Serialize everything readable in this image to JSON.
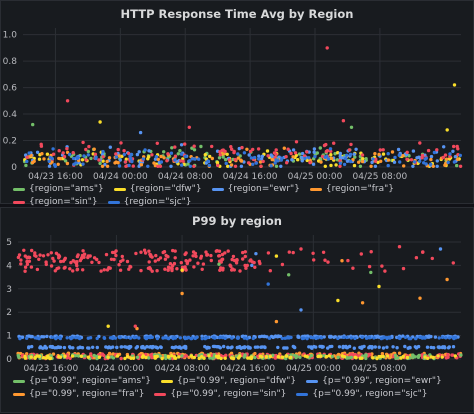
{
  "chart_data": [
    {
      "type": "scatter",
      "title": "HTTP Response Time Avg by Region",
      "xlabel": "",
      "ylabel": "",
      "ylim": [
        0,
        1.05
      ],
      "y_ticks": [
        "0",
        "0.2",
        "0.4",
        "0.6",
        "0.8",
        "1.0"
      ],
      "x_range_hours": [
        0,
        54
      ],
      "x_ticks": [
        {
          "hour": 4,
          "label": "04/23 16:00"
        },
        {
          "hour": 12,
          "label": "04/24 00:00"
        },
        {
          "hour": 20,
          "label": "04/24 08:00"
        },
        {
          "hour": 28,
          "label": "04/24 16:00"
        },
        {
          "hour": 36,
          "label": "04/25 00:00"
        },
        {
          "hour": 44,
          "label": "04/25 08:00"
        }
      ],
      "grid": true,
      "legend_position": "bottom",
      "series": [
        {
          "name": "{region=\"ams\"}",
          "color": "#73bf69",
          "base": 0.07,
          "spread": 0.09,
          "count": 90
        },
        {
          "name": "{region=\"dfw\"}",
          "color": "#fade2a",
          "base": 0.06,
          "spread": 0.08,
          "count": 90
        },
        {
          "name": "{region=\"ewr\"}",
          "color": "#5794f2",
          "base": 0.07,
          "spread": 0.1,
          "count": 110
        },
        {
          "name": "{region=\"fra\"}",
          "color": "#ff9830",
          "base": 0.06,
          "spread": 0.09,
          "count": 90
        },
        {
          "name": "{region=\"sin\"}",
          "color": "#f2495c",
          "base": 0.09,
          "spread": 0.12,
          "count": 120
        },
        {
          "name": "{region=\"sjc\"}",
          "color": "#3274d9",
          "base": 0.06,
          "spread": 0.08,
          "count": 90
        }
      ],
      "outliers": [
        {
          "series": 4,
          "hour": 37.5,
          "y": 0.9
        },
        {
          "series": 1,
          "hour": 53.2,
          "y": 0.62
        },
        {
          "series": 4,
          "hour": 5.5,
          "y": 0.5
        },
        {
          "series": 4,
          "hour": 39.5,
          "y": 0.35
        },
        {
          "series": 0,
          "hour": 1.2,
          "y": 0.32
        },
        {
          "series": 1,
          "hour": 9.5,
          "y": 0.34
        },
        {
          "series": 4,
          "hour": 20.5,
          "y": 0.3
        },
        {
          "series": 2,
          "hour": 14.5,
          "y": 0.26
        },
        {
          "series": 1,
          "hour": 52.3,
          "y": 0.28
        },
        {
          "series": 0,
          "hour": 40.5,
          "y": 0.3
        }
      ]
    },
    {
      "type": "scatter",
      "title": "P99 by region",
      "xlabel": "",
      "ylabel": "",
      "ylim": [
        0,
        5.3
      ],
      "y_ticks": [
        "0",
        "1",
        "2",
        "3",
        "4",
        "5"
      ],
      "x_range_hours": [
        0,
        54
      ],
      "x_ticks": [
        {
          "hour": 4,
          "label": "04/23 16:00"
        },
        {
          "hour": 12,
          "label": "04/24 00:00"
        },
        {
          "hour": 20,
          "label": "04/24 08:00"
        },
        {
          "hour": 28,
          "label": "04/24 16:00"
        },
        {
          "hour": 36,
          "label": "04/25 00:00"
        },
        {
          "hour": 44,
          "label": "04/25 08:00"
        }
      ],
      "grid": true,
      "legend_position": "bottom",
      "series": [
        {
          "name": "{p=\"0.99\", region=\"ams\"}",
          "color": "#73bf69"
        },
        {
          "name": "{p=\"0.99\", region=\"dfw\"}",
          "color": "#fade2a"
        },
        {
          "name": "{p=\"0.99\", region=\"ewr\"}",
          "color": "#5794f2"
        },
        {
          "name": "{p=\"0.99\", region=\"fra\"}",
          "color": "#ff9830"
        },
        {
          "name": "{p=\"0.99\", region=\"sin\"}",
          "color": "#f2495c"
        },
        {
          "name": "{p=\"0.99\", region=\"sjc\"}",
          "color": "#3274d9"
        }
      ],
      "bands": [
        {
          "series": 2,
          "y": 0.95,
          "jitter": 0.03,
          "hour_from": 0,
          "hour_to": 54,
          "count": 200
        },
        {
          "series": 5,
          "y": 0.9,
          "jitter": 0.03,
          "hour_from": 0,
          "hour_to": 54,
          "count": 140
        },
        {
          "series": 2,
          "y": 0.5,
          "jitter": 0.04,
          "hour_from": 0,
          "hour_to": 54,
          "count": 170
        },
        {
          "series": 3,
          "y": 0.15,
          "jitter": 0.1,
          "hour_from": 0,
          "hour_to": 54,
          "count": 200
        },
        {
          "series": 4,
          "y": 0.12,
          "jitter": 0.1,
          "hour_from": 0,
          "hour_to": 54,
          "count": 180
        },
        {
          "series": 0,
          "y": 0.1,
          "jitter": 0.08,
          "hour_from": 0,
          "hour_to": 54,
          "count": 120
        },
        {
          "series": 1,
          "y": 0.08,
          "jitter": 0.06,
          "hour_from": 0,
          "hour_to": 54,
          "count": 100
        },
        {
          "series": 4,
          "y": 4.2,
          "jitter": 0.45,
          "hour_from": 0,
          "hour_to": 30,
          "count": 200
        },
        {
          "series": 4,
          "y": 4.2,
          "jitter": 0.45,
          "hour_from": 30,
          "hour_to": 54,
          "count": 22
        }
      ],
      "outliers": [
        {
          "series": 4,
          "hour": 34.5,
          "y": 4.7
        },
        {
          "series": 4,
          "hour": 46.5,
          "y": 4.8
        },
        {
          "series": 4,
          "hour": 50.5,
          "y": 4.3
        },
        {
          "series": 3,
          "hour": 39.5,
          "y": 4.2
        },
        {
          "series": 3,
          "hour": 52.3,
          "y": 3.4
        },
        {
          "series": 3,
          "hour": 49.0,
          "y": 2.6
        },
        {
          "series": 3,
          "hour": 42.0,
          "y": 2.4
        },
        {
          "series": 0,
          "hour": 24.5,
          "y": 4.05
        },
        {
          "series": 0,
          "hour": 43.0,
          "y": 3.7
        },
        {
          "series": 0,
          "hour": 33.0,
          "y": 3.6
        },
        {
          "series": 1,
          "hour": 31.5,
          "y": 4.4
        },
        {
          "series": 1,
          "hour": 20.0,
          "y": 3.8
        },
        {
          "series": 1,
          "hour": 44.0,
          "y": 3.1
        },
        {
          "series": 1,
          "hour": 39.0,
          "y": 2.5
        },
        {
          "series": 2,
          "hour": 29.0,
          "y": 4.5
        },
        {
          "series": 2,
          "hour": 51.5,
          "y": 4.7
        },
        {
          "series": 2,
          "hour": 28.5,
          "y": 4.0
        },
        {
          "series": 2,
          "hour": 34.5,
          "y": 2.1
        },
        {
          "series": 3,
          "hour": 31.5,
          "y": 1.6
        },
        {
          "series": 5,
          "hour": 30.5,
          "y": 3.2
        },
        {
          "series": 3,
          "hour": 14.5,
          "y": 1.3
        },
        {
          "series": 4,
          "hour": 14.3,
          "y": 1.4
        },
        {
          "series": 1,
          "hour": 11.0,
          "y": 1.4
        },
        {
          "series": 3,
          "hour": 20.0,
          "y": 2.8
        }
      ]
    }
  ]
}
